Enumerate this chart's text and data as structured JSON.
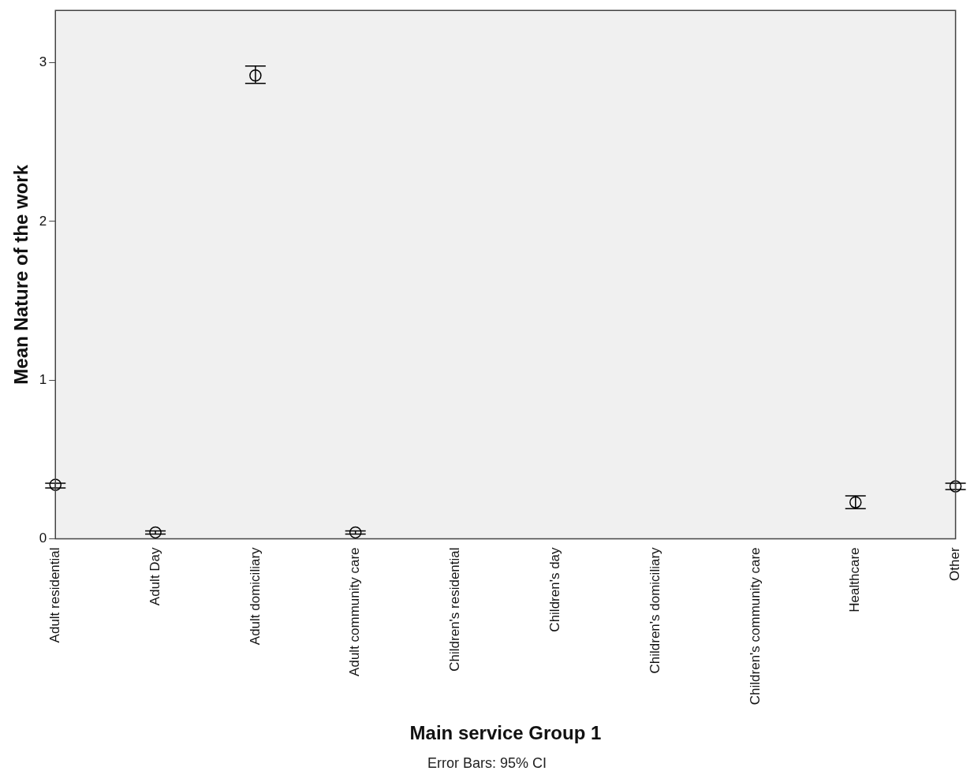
{
  "chart_data": {
    "type": "scatter",
    "xlabel": "Main service Group 1",
    "ylabel": "Mean Nature of the work",
    "categories": [
      "Adult residential",
      "Adult Day",
      "Adult domiciliary",
      "Adult community care",
      "Children's residential",
      "Children's day",
      "Children's domiciliary",
      "Children's community care",
      "Healthcare",
      "Other"
    ],
    "values": [
      0.34,
      0.04,
      2.92,
      0.04,
      null,
      null,
      null,
      null,
      0.23,
      0.33
    ],
    "errors": [
      [
        0.32,
        0.35
      ],
      [
        0.03,
        0.05
      ],
      [
        2.87,
        2.98
      ],
      [
        0.03,
        0.05
      ],
      null,
      null,
      null,
      null,
      [
        0.19,
        0.27
      ],
      [
        0.31,
        0.35
      ]
    ],
    "color": "#000000",
    "marker": "circle",
    "ylim": [
      0,
      3.33
    ],
    "yticks": [
      0,
      1,
      2,
      3
    ],
    "grid": false,
    "legend": false,
    "annotations": [
      "Error Bars: 95% CI"
    ]
  }
}
